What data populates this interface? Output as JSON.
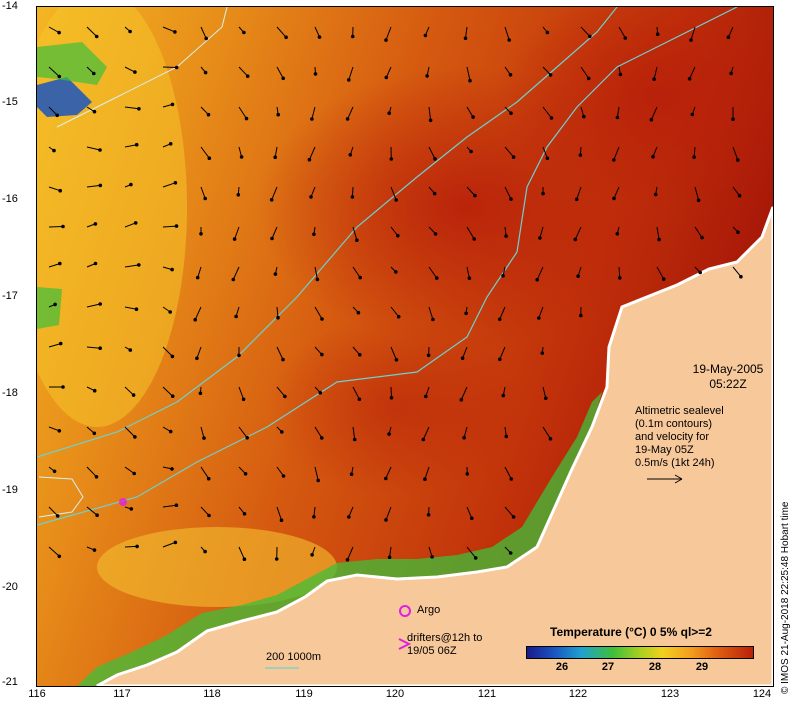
{
  "map": {
    "title_date": "19-May-2005",
    "title_time": "05:22Z",
    "annotation_lines": [
      "Altimetric sealevel",
      "(0.1m contours)",
      "and velocity for",
      "19-May 05Z",
      "0.5m/s (1kt 24h)"
    ],
    "argo_label": "Argo",
    "drifters_line1": "drifters@12h to",
    "drifters_line2": "19/05 06Z",
    "bathymetry_label": "200  1000m",
    "legend_title": "Temperature (°C) 0 5% ql>=2",
    "colorbar_ticks": [
      "26",
      "27",
      "28",
      "29"
    ],
    "credit": "© IMOS 21-Aug-2018 22:25:48 Hobart time",
    "lat_ticks": [
      "-14",
      "-15",
      "-16",
      "-17",
      "-18",
      "-19",
      "-20",
      "-21"
    ],
    "lon_ticks": [
      "116",
      "117",
      "118",
      "119",
      "120",
      "121",
      "122",
      "123",
      "124"
    ],
    "colors": {
      "land": "#f7c89a",
      "sst_warm": "#c0290a",
      "sst_mid": "#e06a10",
      "sst_cool": "#f2b020",
      "sst_cold": "#3fbf3a",
      "contour": "#6ed0d0",
      "argo": "#e020e0"
    }
  }
}
